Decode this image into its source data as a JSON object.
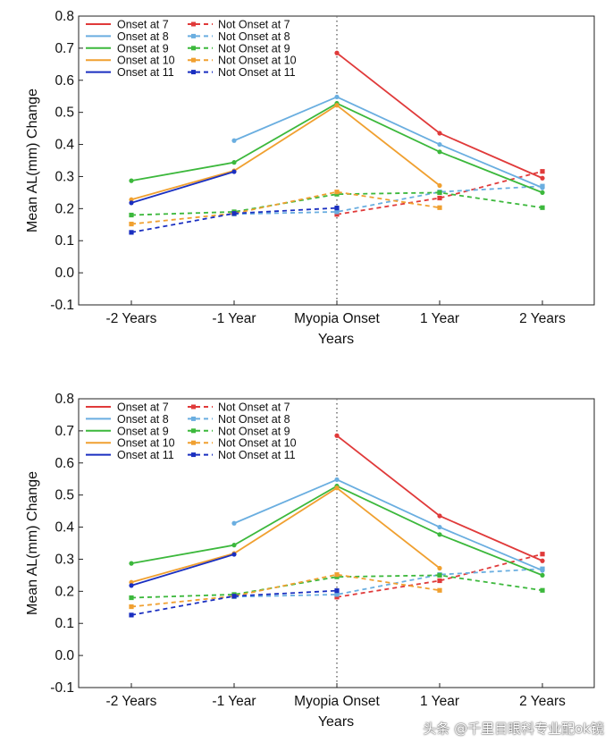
{
  "chart_data": [
    {
      "type": "line",
      "categories": [
        "-2 Years",
        "-1 Year",
        "Myopia Onset",
        "1 Year",
        "2 Years"
      ],
      "xlabel": "Years",
      "ylabel": "Mean AL(mm) Change",
      "ylim": [
        -0.1,
        0.8
      ],
      "yticks": [
        "-0.1",
        "0.0",
        "0.1",
        "0.2",
        "0.3",
        "0.4",
        "0.5",
        "0.6",
        "0.7",
        "0.8"
      ],
      "grid": false,
      "legend_position": "top-left",
      "reference_line_at": "Myopia Onset",
      "series": [
        {
          "name": "Onset at 7",
          "color": "#e03a3a",
          "style": "solid",
          "values": [
            null,
            null,
            0.685,
            0.435,
            0.295
          ]
        },
        {
          "name": "Onset at 8",
          "color": "#6aaee0",
          "style": "solid",
          "values": [
            null,
            0.412,
            0.548,
            0.4,
            0.265
          ]
        },
        {
          "name": "Onset at 9",
          "color": "#3cb83c",
          "style": "solid",
          "values": [
            0.287,
            0.344,
            0.528,
            0.377,
            0.25
          ]
        },
        {
          "name": "Onset at 10",
          "color": "#f0a030",
          "style": "solid",
          "values": [
            0.228,
            0.318,
            0.522,
            0.272,
            null
          ]
        },
        {
          "name": "Onset at 11",
          "color": "#1a2fc0",
          "style": "solid",
          "values": [
            0.218,
            0.315,
            null,
            null,
            null
          ]
        },
        {
          "name": "Not Onset at 7",
          "color": "#e03a3a",
          "style": "dashed",
          "values": [
            null,
            null,
            0.182,
            0.233,
            0.316
          ]
        },
        {
          "name": "Not Onset at 8",
          "color": "#6aaee0",
          "style": "dashed",
          "values": [
            null,
            0.183,
            0.19,
            0.252,
            0.27
          ]
        },
        {
          "name": "Not Onset at 9",
          "color": "#3cb83c",
          "style": "dashed",
          "values": [
            0.18,
            0.19,
            0.245,
            0.25,
            0.203
          ]
        },
        {
          "name": "Not Onset at 10",
          "color": "#f0a030",
          "style": "dashed",
          "values": [
            0.152,
            0.185,
            0.252,
            0.203,
            null
          ]
        },
        {
          "name": "Not Onset at 11",
          "color": "#1a2fc0",
          "style": "dashed",
          "values": [
            0.126,
            0.185,
            0.202,
            null,
            null
          ]
        }
      ]
    },
    {
      "type": "line",
      "categories": [
        "-2 Years",
        "-1 Year",
        "Myopia Onset",
        "1 Year",
        "2 Years"
      ],
      "xlabel": "Years",
      "ylabel": "Mean AL(mm) Change",
      "ylim": [
        -0.1,
        0.8
      ],
      "yticks": [
        "-0.1",
        "0.0",
        "0.1",
        "0.2",
        "0.3",
        "0.4",
        "0.5",
        "0.6",
        "0.7",
        "0.8"
      ],
      "grid": false,
      "legend_position": "top-left",
      "reference_line_at": "Myopia Onset",
      "series": [
        {
          "name": "Onset at 7",
          "color": "#e03a3a",
          "style": "solid",
          "values": [
            null,
            null,
            0.685,
            0.435,
            0.295
          ]
        },
        {
          "name": "Onset at 8",
          "color": "#6aaee0",
          "style": "solid",
          "values": [
            null,
            0.412,
            0.548,
            0.4,
            0.265
          ]
        },
        {
          "name": "Onset at 9",
          "color": "#3cb83c",
          "style": "solid",
          "values": [
            0.287,
            0.344,
            0.528,
            0.377,
            0.25
          ]
        },
        {
          "name": "Onset at 10",
          "color": "#f0a030",
          "style": "solid",
          "values": [
            0.228,
            0.318,
            0.522,
            0.272,
            null
          ]
        },
        {
          "name": "Onset at 11",
          "color": "#1a2fc0",
          "style": "solid",
          "values": [
            0.218,
            0.315,
            null,
            null,
            null
          ]
        },
        {
          "name": "Not Onset at 7",
          "color": "#e03a3a",
          "style": "dashed",
          "values": [
            null,
            null,
            0.182,
            0.233,
            0.316
          ]
        },
        {
          "name": "Not Onset at 8",
          "color": "#6aaee0",
          "style": "dashed",
          "values": [
            null,
            0.183,
            0.19,
            0.252,
            0.27
          ]
        },
        {
          "name": "Not Onset at 9",
          "color": "#3cb83c",
          "style": "dashed",
          "values": [
            0.18,
            0.19,
            0.245,
            0.25,
            0.203
          ]
        },
        {
          "name": "Not Onset at 10",
          "color": "#f0a030",
          "style": "dashed",
          "values": [
            0.152,
            0.185,
            0.252,
            0.203,
            null
          ]
        },
        {
          "name": "Not Onset at 11",
          "color": "#1a2fc0",
          "style": "dashed",
          "values": [
            0.126,
            0.185,
            0.202,
            null,
            null
          ]
        }
      ]
    }
  ],
  "watermark": "头条 @千里目眼科专业配ok镜"
}
